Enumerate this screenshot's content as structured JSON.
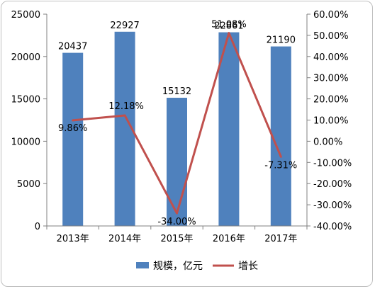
{
  "chart_data": {
    "type": "bar",
    "categories": [
      "2013年",
      "2014年",
      "2015年",
      "2016年",
      "2017年"
    ],
    "series": [
      {
        "name": "规模，亿元",
        "type": "bar",
        "axis": "left",
        "values": [
          20437,
          22927,
          15132,
          22861,
          21190
        ],
        "labels": [
          "20437",
          "22927",
          "15132",
          "22861",
          "21190"
        ],
        "color": "#4f81bd"
      },
      {
        "name": "增长",
        "type": "line",
        "axis": "right",
        "values": [
          9.86,
          12.18,
          -34.0,
          51.08,
          -7.31
        ],
        "labels": [
          "9.86%",
          "12.18%",
          "-34.00%",
          "51.08%",
          "-7.31%"
        ],
        "color": "#c0504d"
      }
    ],
    "y_left": {
      "min": 0,
      "max": 25000,
      "ticks": [
        "0",
        "5000",
        "10000",
        "15000",
        "20000",
        "25000"
      ]
    },
    "y_right": {
      "min": -40,
      "max": 60,
      "ticks": [
        "-40.00%",
        "-30.00%",
        "-20.00%",
        "-10.00%",
        "0.00%",
        "10.00%",
        "20.00%",
        "30.00%",
        "40.00%",
        "50.00%",
        "60.00%"
      ]
    },
    "legend": {
      "position": "bottom"
    },
    "grid": false
  }
}
